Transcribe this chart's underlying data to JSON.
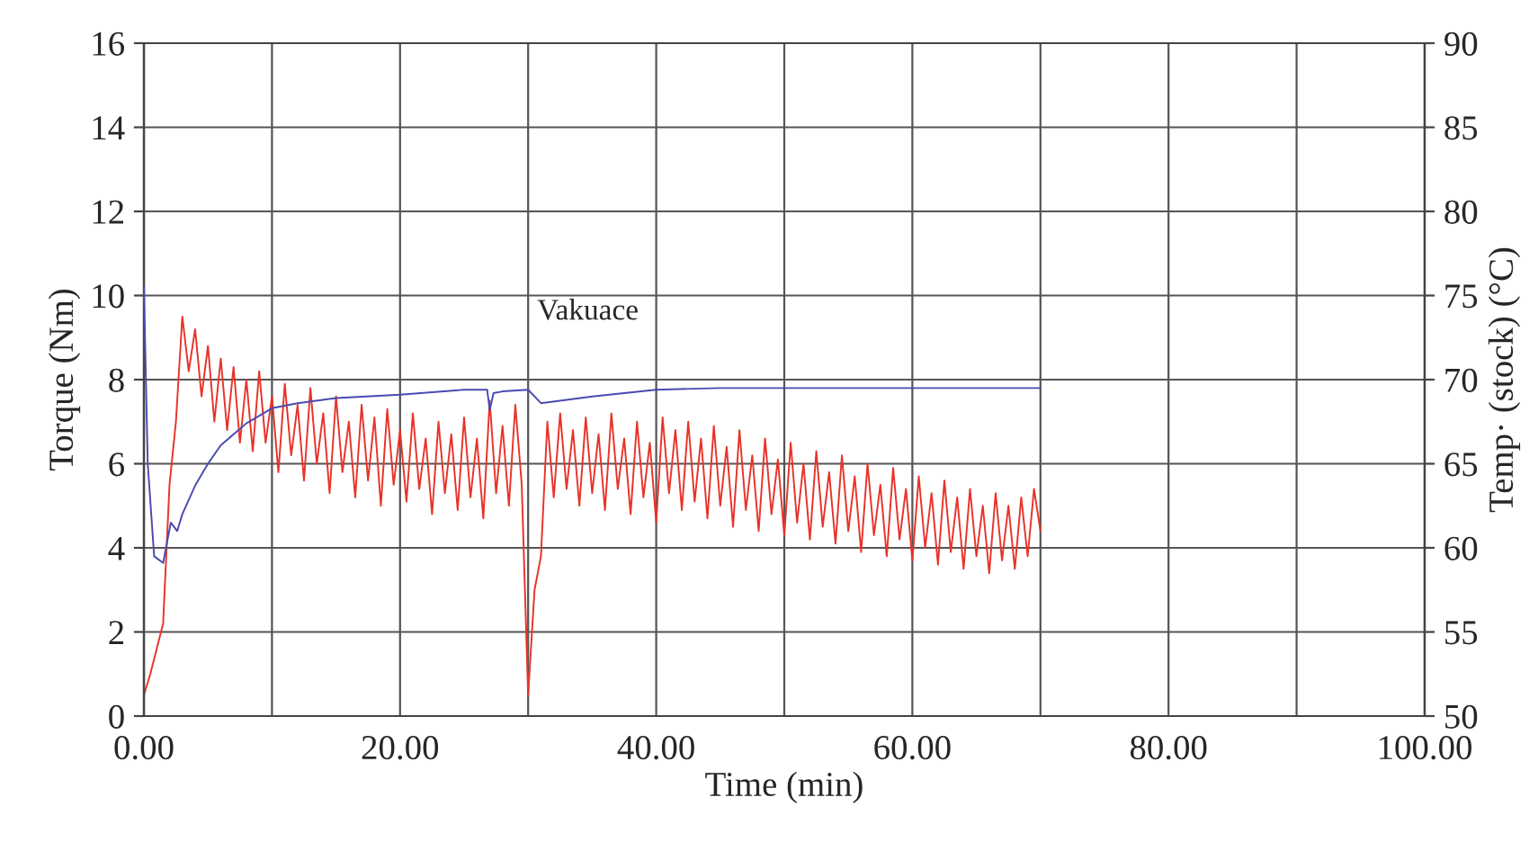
{
  "chart_data": {
    "type": "line",
    "xlabel": "Time (min)",
    "ylabel": "Torque (Nm)",
    "y2label": "Temp· (stock) (°C)",
    "xlim": [
      0,
      100
    ],
    "ylim": [
      0,
      16
    ],
    "y2lim": [
      50,
      90
    ],
    "xticks": [
      {
        "value": 0,
        "label": "0.00"
      },
      {
        "value": 10,
        "label": null
      },
      {
        "value": 20,
        "label": "20.00"
      },
      {
        "value": 30,
        "label": null
      },
      {
        "value": 40,
        "label": "40.00"
      },
      {
        "value": 50,
        "label": null
      },
      {
        "value": 60,
        "label": "60.00"
      },
      {
        "value": 70,
        "label": null
      },
      {
        "value": 80,
        "label": "80.00"
      },
      {
        "value": 90,
        "label": null
      },
      {
        "value": 100,
        "label": "100.00"
      }
    ],
    "yticks": [
      0,
      2,
      4,
      6,
      8,
      10,
      12,
      14,
      16
    ],
    "y2ticks": [
      50,
      55,
      60,
      65,
      70,
      75,
      80,
      85,
      90
    ],
    "grid": true,
    "legend": false,
    "marker": "none",
    "line_style": "solid",
    "annotations": [
      "Vakuace"
    ],
    "series": [
      {
        "color": "#e8332a",
        "x": [
          0,
          0.5,
          1,
          1.5,
          2,
          2.5,
          3,
          3.5,
          4,
          4.5,
          5,
          5.5,
          6,
          6.5,
          7,
          7.5,
          8,
          8.5,
          9,
          9.5,
          10,
          10.5,
          11,
          11.5,
          12,
          12.5,
          13,
          13.5,
          14,
          14.5,
          15,
          15.5,
          16,
          16.5,
          17,
          17.5,
          18,
          18.5,
          19,
          19.5,
          20,
          20.5,
          21,
          21.5,
          22,
          22.5,
          23,
          23.5,
          24,
          24.5,
          25,
          25.5,
          26,
          26.5,
          27,
          27.5,
          28,
          28.5,
          29,
          29.5,
          30,
          30.5,
          31,
          31.5,
          32,
          32.5,
          33,
          33.5,
          34,
          34.5,
          35,
          35.5,
          36,
          36.5,
          37,
          37.5,
          38,
          38.5,
          39,
          39.5,
          40,
          40.5,
          41,
          41.5,
          42,
          42.5,
          43,
          43.5,
          44,
          44.5,
          45,
          45.5,
          46,
          46.5,
          47,
          47.5,
          48,
          48.5,
          49,
          49.5,
          50,
          50.5,
          51,
          51.5,
          52,
          52.5,
          53,
          53.5,
          54,
          54.5,
          55,
          55.5,
          56,
          56.5,
          57,
          57.5,
          58,
          58.5,
          59,
          59.5,
          60,
          60.5,
          61,
          61.5,
          62,
          62.5,
          63,
          63.5,
          64,
          64.5,
          65,
          65.5,
          66,
          66.5,
          67,
          67.5,
          68,
          68.5,
          69,
          69.5,
          70
        ],
        "values": [
          0.5,
          1.0,
          1.6,
          2.2,
          5.5,
          7.0,
          9.5,
          8.2,
          9.2,
          7.6,
          8.8,
          7.0,
          8.5,
          6.8,
          8.3,
          6.5,
          8.0,
          6.3,
          8.2,
          6.5,
          7.6,
          5.8,
          7.9,
          6.2,
          7.4,
          5.6,
          7.8,
          6.0,
          7.2,
          5.3,
          7.6,
          5.8,
          7.0,
          5.2,
          7.4,
          5.6,
          7.1,
          5.0,
          7.3,
          5.5,
          6.8,
          5.1,
          7.2,
          5.4,
          6.6,
          4.8,
          7.0,
          5.3,
          6.7,
          4.9,
          7.1,
          5.2,
          6.6,
          4.7,
          7.5,
          5.3,
          6.9,
          5.0,
          7.4,
          5.5,
          0.5,
          3.0,
          3.8,
          7.0,
          5.2,
          7.2,
          5.4,
          6.8,
          5.0,
          7.1,
          5.3,
          6.7,
          4.9,
          7.2,
          5.4,
          6.6,
          4.8,
          7.0,
          5.2,
          6.5,
          4.6,
          7.1,
          5.3,
          6.8,
          4.9,
          7.0,
          5.1,
          6.6,
          4.7,
          6.9,
          5.0,
          6.4,
          4.5,
          6.8,
          4.9,
          6.2,
          4.4,
          6.6,
          4.8,
          6.1,
          4.3,
          6.5,
          4.6,
          6.0,
          4.2,
          6.3,
          4.5,
          5.8,
          4.1,
          6.2,
          4.4,
          5.7,
          3.9,
          6.0,
          4.3,
          5.5,
          3.8,
          5.9,
          4.2,
          5.4,
          3.7,
          5.7,
          4.0,
          5.3,
          3.6,
          5.6,
          3.9,
          5.2,
          3.5,
          5.4,
          3.8,
          5.0,
          3.4,
          5.3,
          3.7,
          5.0,
          3.5,
          5.2,
          3.8,
          5.4,
          4.4
        ]
      },
      {
        "color": "#4a4ab0",
        "axis": "y2",
        "x": [
          0,
          0.3,
          0.8,
          1.5,
          2.1,
          2.6,
          3,
          4,
          5,
          6,
          8,
          10,
          12,
          15,
          20,
          25,
          26.8,
          27,
          27.3,
          28,
          30,
          31,
          33,
          35,
          40,
          45,
          50,
          55,
          60,
          65,
          70
        ],
        "values": [
          75.5,
          65,
          59.5,
          59.1,
          61.5,
          61.0,
          62.0,
          63.7,
          65.0,
          66.1,
          67.4,
          68.3,
          68.6,
          68.9,
          69.1,
          69.4,
          69.4,
          68.2,
          69.2,
          69.3,
          69.4,
          68.6,
          68.8,
          69.0,
          69.4,
          69.5,
          69.5,
          69.5,
          69.5,
          69.5,
          69.5
        ]
      }
    ]
  }
}
